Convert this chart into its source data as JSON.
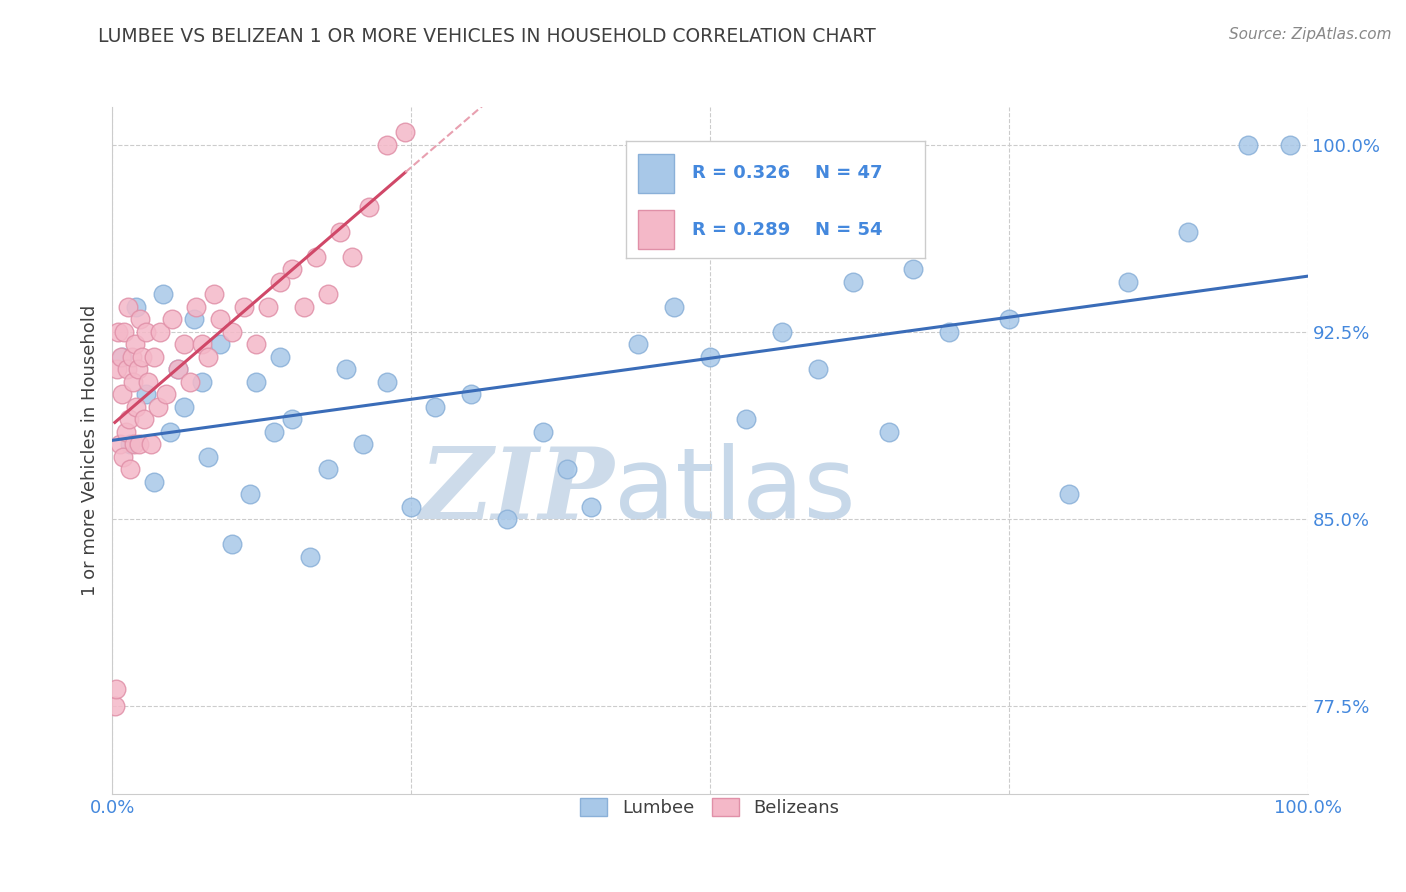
{
  "title": "LUMBEE VS BELIZEAN 1 OR MORE VEHICLES IN HOUSEHOLD CORRELATION CHART",
  "source_text": "Source: ZipAtlas.com",
  "ylabel": "1 or more Vehicles in Household",
  "watermark_zip": "ZIP",
  "watermark_atlas": "atlas",
  "lumbee_R": 0.326,
  "lumbee_N": 47,
  "belizean_R": 0.289,
  "belizean_N": 54,
  "lumbee_color": "#a8c8e8",
  "lumbee_edge_color": "#8ab0d8",
  "lumbee_line_color": "#3a6cb8",
  "belizean_color": "#f4b8c8",
  "belizean_edge_color": "#e090a8",
  "belizean_line_color": "#d04868",
  "belizean_line_dashed_color": "#e8a0b0",
  "background_color": "#ffffff",
  "grid_color": "#cccccc",
  "axis_label_color": "#4488dd",
  "title_color": "#404040",
  "ylabel_color": "#404040",
  "source_color": "#888888",
  "watermark_color": "#d8e4f0",
  "legend_edge_color": "#cccccc",
  "xmin": 0.0,
  "xmax": 100.0,
  "ymin": 74.0,
  "ymax": 101.5,
  "yticks": [
    77.5,
    85.0,
    92.5,
    100.0
  ],
  "lumbee_x": [
    0.8,
    1.5,
    2.0,
    2.8,
    3.5,
    4.2,
    4.8,
    5.5,
    6.0,
    6.8,
    7.5,
    8.0,
    9.0,
    10.0,
    11.5,
    12.0,
    13.5,
    14.0,
    15.0,
    16.5,
    18.0,
    19.5,
    21.0,
    23.0,
    25.0,
    27.0,
    30.0,
    33.0,
    36.0,
    38.0,
    40.0,
    44.0,
    47.0,
    50.0,
    53.0,
    56.0,
    59.0,
    62.0,
    65.0,
    67.0,
    70.0,
    75.0,
    80.0,
    85.0,
    90.0,
    95.0,
    98.5
  ],
  "lumbee_y": [
    91.5,
    88.0,
    93.5,
    90.0,
    86.5,
    94.0,
    88.5,
    91.0,
    89.5,
    93.0,
    90.5,
    87.5,
    92.0,
    84.0,
    86.0,
    90.5,
    88.5,
    91.5,
    89.0,
    83.5,
    87.0,
    91.0,
    88.0,
    90.5,
    85.5,
    89.5,
    90.0,
    85.0,
    88.5,
    87.0,
    85.5,
    92.0,
    93.5,
    91.5,
    89.0,
    92.5,
    91.0,
    94.5,
    88.5,
    95.0,
    92.5,
    93.0,
    86.0,
    94.5,
    96.5,
    100.0,
    100.0
  ],
  "belizean_x": [
    0.2,
    0.3,
    0.4,
    0.5,
    0.6,
    0.7,
    0.8,
    0.9,
    1.0,
    1.1,
    1.2,
    1.3,
    1.4,
    1.5,
    1.6,
    1.7,
    1.8,
    1.9,
    2.0,
    2.1,
    2.2,
    2.3,
    2.5,
    2.6,
    2.8,
    3.0,
    3.2,
    3.5,
    3.8,
    4.0,
    4.5,
    5.0,
    5.5,
    6.0,
    6.5,
    7.0,
    7.5,
    8.0,
    8.5,
    9.0,
    10.0,
    11.0,
    12.0,
    13.0,
    14.0,
    15.0,
    16.0,
    17.0,
    18.0,
    19.0,
    20.0,
    21.5,
    23.0,
    24.5
  ],
  "belizean_y": [
    77.5,
    78.2,
    91.0,
    92.5,
    88.0,
    91.5,
    90.0,
    87.5,
    92.5,
    88.5,
    91.0,
    93.5,
    89.0,
    87.0,
    91.5,
    90.5,
    88.0,
    92.0,
    89.5,
    91.0,
    88.0,
    93.0,
    91.5,
    89.0,
    92.5,
    90.5,
    88.0,
    91.5,
    89.5,
    92.5,
    90.0,
    93.0,
    91.0,
    92.0,
    90.5,
    93.5,
    92.0,
    91.5,
    94.0,
    93.0,
    92.5,
    93.5,
    92.0,
    93.5,
    94.5,
    95.0,
    93.5,
    95.5,
    94.0,
    96.5,
    95.5,
    97.5,
    100.0,
    100.5
  ]
}
